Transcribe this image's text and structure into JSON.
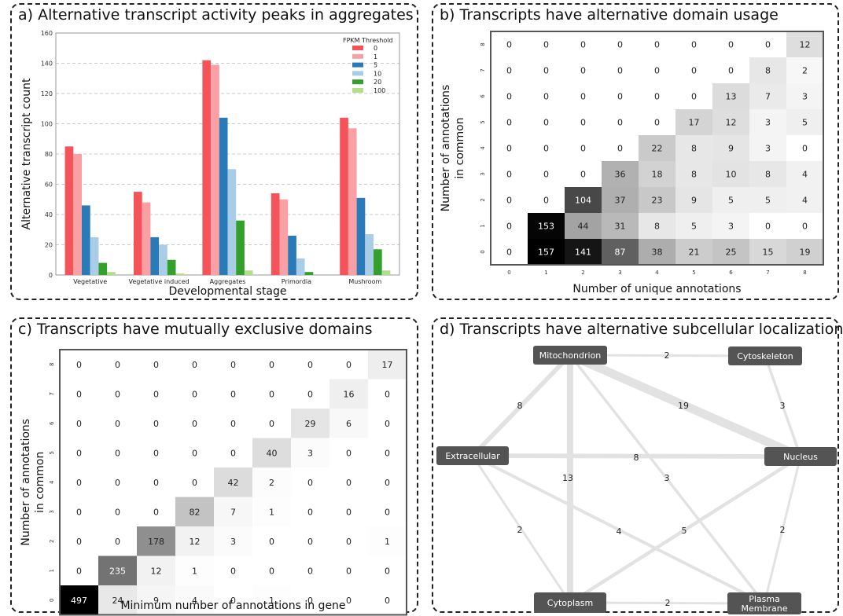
{
  "panels": {
    "a": {
      "title": "a) Alternative transcript activity peaks  in aggregates"
    },
    "b": {
      "title": "b) Transcripts have alternative domain usage"
    },
    "c": {
      "title": "c) Transcripts have mutually exclusive domains"
    },
    "d": {
      "title": "d) Transcripts have alternative subcellular localizations"
    }
  },
  "chart_data": [
    {
      "id": "a",
      "type": "bar",
      "title": "a) Alternative transcript activity peaks  in aggregates",
      "xlabel": "Developmental stage",
      "ylabel": "Alternative transcript count",
      "ylim": [
        0,
        160
      ],
      "yticks": [
        0,
        20,
        40,
        60,
        80,
        100,
        120,
        140,
        160
      ],
      "grid": true,
      "legend_title": "FPKM Threshold",
      "legend_position": "top-right",
      "categories": [
        "Vegetative",
        "Vegetative induced",
        "Aggregates",
        "Primordia",
        "Mushroom"
      ],
      "series": [
        {
          "name": "0",
          "color": "#f4535a",
          "values": [
            85,
            55,
            142,
            54,
            104
          ]
        },
        {
          "name": "1",
          "color": "#f8a0a3",
          "values": [
            80,
            48,
            139,
            50,
            97
          ]
        },
        {
          "name": "5",
          "color": "#2a7ab8",
          "values": [
            46,
            25,
            104,
            26,
            51
          ]
        },
        {
          "name": "10",
          "color": "#a9cde6",
          "values": [
            25,
            20,
            70,
            11,
            27
          ]
        },
        {
          "name": "20",
          "color": "#33a02c",
          "values": [
            8,
            10,
            36,
            2,
            17
          ]
        },
        {
          "name": "100",
          "color": "#b2df8a",
          "values": [
            2,
            1,
            3,
            0,
            3
          ]
        }
      ]
    },
    {
      "id": "b",
      "type": "heatmap",
      "title": "b) Transcripts have alternative domain usage",
      "xlabel": "Number of unique annotations",
      "ylabel": "Number of annotations in common",
      "xticks": [
        "0",
        "1",
        "2",
        "3",
        "4",
        "5",
        "6",
        "7",
        "8"
      ],
      "yticks": [
        "0",
        "1",
        "2",
        "3",
        "4",
        "5",
        "6",
        "7",
        "8"
      ],
      "max": 157,
      "rows_top_to_bottom": [
        [
          0,
          0,
          0,
          0,
          0,
          0,
          0,
          0,
          12
        ],
        [
          0,
          0,
          0,
          0,
          0,
          0,
          0,
          8,
          2
        ],
        [
          0,
          0,
          0,
          0,
          0,
          0,
          13,
          7,
          3
        ],
        [
          0,
          0,
          0,
          0,
          0,
          17,
          12,
          3,
          5
        ],
        [
          0,
          0,
          0,
          0,
          22,
          8,
          9,
          3,
          0
        ],
        [
          0,
          0,
          0,
          36,
          18,
          8,
          10,
          8,
          4
        ],
        [
          0,
          0,
          104,
          37,
          23,
          9,
          5,
          5,
          4
        ],
        [
          0,
          153,
          44,
          31,
          8,
          5,
          3,
          0,
          0
        ],
        [
          0,
          157,
          141,
          87,
          38,
          21,
          25,
          15,
          19
        ]
      ]
    },
    {
      "id": "c",
      "type": "heatmap",
      "title": "c) Transcripts have mutually exclusive domains",
      "xlabel": "Minimum number of annotations in gene",
      "ylabel": "Number of annotations in common",
      "xticks": [
        "0",
        "1",
        "2",
        "3",
        "4",
        "5",
        "6",
        "7",
        "8"
      ],
      "yticks": [
        "0",
        "1",
        "2",
        "3",
        "4",
        "5",
        "6",
        "7",
        "8"
      ],
      "max": 497,
      "rows_top_to_bottom": [
        [
          0,
          0,
          0,
          0,
          0,
          0,
          0,
          0,
          17
        ],
        [
          0,
          0,
          0,
          0,
          0,
          0,
          0,
          16,
          0
        ],
        [
          0,
          0,
          0,
          0,
          0,
          0,
          29,
          6,
          0
        ],
        [
          0,
          0,
          0,
          0,
          0,
          40,
          3,
          0,
          0
        ],
        [
          0,
          0,
          0,
          0,
          42,
          2,
          0,
          0,
          0
        ],
        [
          0,
          0,
          0,
          82,
          7,
          1,
          0,
          0,
          0
        ],
        [
          0,
          0,
          178,
          12,
          3,
          0,
          0,
          0,
          1
        ],
        [
          0,
          235,
          12,
          1,
          0,
          0,
          0,
          0,
          0
        ],
        [
          497,
          24,
          9,
          4,
          0,
          1,
          0,
          0,
          0
        ]
      ]
    },
    {
      "id": "d",
      "type": "network",
      "title": "d) Transcripts have alternative subcellular localizations",
      "nodes": [
        {
          "id": "mito",
          "label": "Mitochondrion"
        },
        {
          "id": "cyto",
          "label": "Cytoskeleton"
        },
        {
          "id": "extra",
          "label": "Extracellular"
        },
        {
          "id": "nuc",
          "label": "Nucleus"
        },
        {
          "id": "plasm",
          "label": "Cytoplasm"
        },
        {
          "id": "pm",
          "label": "Plasma\nMembrane"
        }
      ],
      "edges": [
        {
          "source": "mito",
          "target": "cyto",
          "value": 2
        },
        {
          "source": "mito",
          "target": "extra",
          "value": 8
        },
        {
          "source": "mito",
          "target": "nuc",
          "value": 19
        },
        {
          "source": "mito",
          "target": "plasm",
          "value": 13
        },
        {
          "source": "mito",
          "target": "pm",
          "value": 3
        },
        {
          "source": "cyto",
          "target": "nuc",
          "value": 3
        },
        {
          "source": "extra",
          "target": "nuc",
          "value": 8
        },
        {
          "source": "extra",
          "target": "plasm",
          "value": 2
        },
        {
          "source": "extra",
          "target": "pm",
          "value": 4
        },
        {
          "source": "nuc",
          "target": "plasm",
          "value": 5
        },
        {
          "source": "nuc",
          "target": "pm",
          "value": 2
        },
        {
          "source": "plasm",
          "target": "pm",
          "value": 2
        }
      ]
    }
  ]
}
